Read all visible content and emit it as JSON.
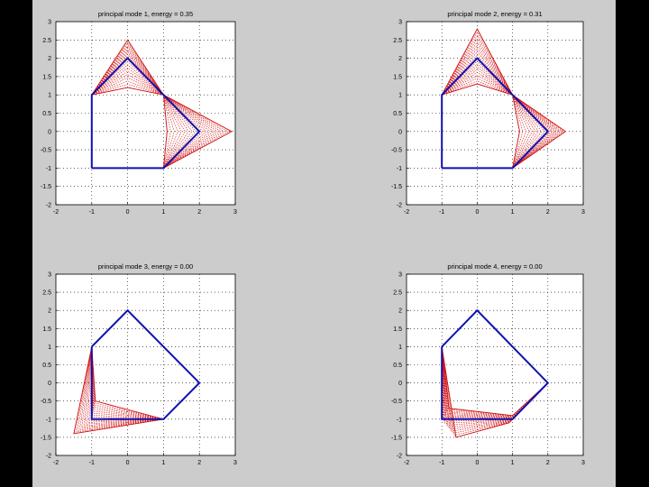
{
  "figure": {
    "background": "#cccccc",
    "outer_background": "#000000"
  },
  "colors": {
    "base_shape": "#1010b0",
    "mode_lines": "#d01010",
    "axes_bg": "#ffffff",
    "grid": "#000000"
  },
  "chart_data": [
    {
      "type": "line",
      "title": "principal mode 1, energy = 0.35",
      "xlim": [
        -2,
        3
      ],
      "ylim": [
        -2,
        3
      ],
      "xticks": [
        -2,
        -1,
        0,
        1,
        2,
        3
      ],
      "yticks": [
        -2,
        -1.5,
        -1,
        -0.5,
        0,
        0.5,
        1,
        1.5,
        2,
        2.5,
        3
      ],
      "xtick_labels": [
        "-2",
        "-1",
        "0",
        "1",
        "2",
        "3"
      ],
      "ytick_labels": [
        "-2",
        "-1.5",
        "-1",
        "-0.5",
        "0",
        "0.5",
        "1",
        "1.5",
        "2",
        "2.5",
        "3"
      ],
      "grid": true,
      "base_shape": {
        "x": [
          -1,
          -1,
          1,
          1,
          0,
          -1
        ],
        "y": [
          -1,
          1,
          1,
          -1,
          2,
          1
        ]
      },
      "series": [
        {
          "values": [
            [
              -1,
              -1
            ],
            [
              -1,
              1
            ],
            [
              0,
              2
            ],
            [
              1,
              1
            ],
            [
              2,
              0
            ],
            [
              1,
              -1
            ],
            [
              -1,
              -1
            ]
          ]
        },
        {
          "values": [
            [
              -1,
              -1
            ],
            [
              -1,
              1
            ],
            [
              0,
              2.5
            ],
            [
              1,
              1
            ],
            [
              2.9,
              0
            ],
            [
              1,
              -1
            ],
            [
              -1,
              -1
            ]
          ]
        },
        {
          "values": [
            [
              -1,
              -1
            ],
            [
              -1,
              1
            ],
            [
              0,
              1.2
            ],
            [
              1,
              1
            ],
            [
              1.1,
              0
            ],
            [
              1,
              -1
            ],
            [
              -1,
              -1
            ]
          ]
        }
      ]
    },
    {
      "type": "line",
      "title": "principal mode 2, energy = 0.31",
      "xlim": [
        -2,
        3
      ],
      "ylim": [
        -2,
        3
      ],
      "xticks": [
        -2,
        -1,
        0,
        1,
        2,
        3
      ],
      "yticks": [
        -2,
        -1.5,
        -1,
        -0.5,
        0,
        0.5,
        1,
        1.5,
        2,
        2.5,
        3
      ],
      "xtick_labels": [
        "-2",
        "-1",
        "0",
        "1",
        "2",
        "3"
      ],
      "ytick_labels": [
        "-2",
        "-1.5",
        "-1",
        "-0.5",
        "0",
        "0.5",
        "1",
        "1.5",
        "2",
        "2.5",
        "3"
      ],
      "grid": true,
      "series": [
        {
          "values": [
            [
              -1,
              -1
            ],
            [
              -1,
              1
            ],
            [
              0,
              2
            ],
            [
              1,
              1
            ],
            [
              2,
              0
            ],
            [
              1,
              -1
            ],
            [
              -1,
              -1
            ]
          ]
        },
        {
          "values": [
            [
              -1,
              -1
            ],
            [
              -1,
              1
            ],
            [
              0,
              2.8
            ],
            [
              1,
              1
            ],
            [
              2.5,
              0
            ],
            [
              1,
              -1
            ],
            [
              -1,
              -1
            ]
          ]
        },
        {
          "values": [
            [
              -1,
              -1
            ],
            [
              -1,
              1
            ],
            [
              0,
              1.3
            ],
            [
              1,
              1
            ],
            [
              1.2,
              0
            ],
            [
              1,
              -1
            ],
            [
              -1,
              -1
            ]
          ]
        }
      ]
    },
    {
      "type": "line",
      "title": "principal mode 3, energy = 0.00",
      "xlim": [
        -2,
        3
      ],
      "ylim": [
        -2,
        3
      ],
      "xticks": [
        -2,
        -1,
        0,
        1,
        2,
        3
      ],
      "yticks": [
        -2,
        -1.5,
        -1,
        -0.5,
        0,
        0.5,
        1,
        1.5,
        2,
        2.5,
        3
      ],
      "xtick_labels": [
        "-2",
        "-1",
        "0",
        "1",
        "2",
        "3"
      ],
      "ytick_labels": [
        "-2",
        "-1.5",
        "-1",
        "-0.5",
        "0",
        "0.5",
        "1",
        "1.5",
        "2",
        "2.5",
        "3"
      ],
      "grid": true,
      "series": [
        {
          "values": [
            [
              -1,
              1
            ],
            [
              0,
              2
            ],
            [
              1,
              1
            ],
            [
              2,
              0
            ],
            [
              1,
              -1
            ],
            [
              -1,
              -1
            ],
            [
              -1,
              1
            ]
          ]
        },
        {
          "values": [
            [
              -1,
              1
            ],
            [
              0,
              2
            ],
            [
              1,
              1
            ],
            [
              2,
              0
            ],
            [
              1,
              -1
            ],
            [
              -1.5,
              -1.4
            ],
            [
              -1,
              1
            ]
          ]
        },
        {
          "values": [
            [
              -1,
              1
            ],
            [
              0,
              2
            ],
            [
              1,
              1
            ],
            [
              2,
              0
            ],
            [
              1,
              -1
            ],
            [
              -0.9,
              -0.5
            ],
            [
              -1,
              1
            ]
          ]
        }
      ]
    },
    {
      "type": "line",
      "title": "principal mode 4, energy = 0.00",
      "xlim": [
        -2,
        3
      ],
      "ylim": [
        -2,
        3
      ],
      "xticks": [
        -2,
        -1,
        0,
        1,
        2,
        3
      ],
      "yticks": [
        -2,
        -1.5,
        -1,
        -0.5,
        0,
        0.5,
        1,
        1.5,
        2,
        2.5,
        3
      ],
      "xtick_labels": [
        "-2",
        "-1",
        "0",
        "1",
        "2",
        "3"
      ],
      "ytick_labels": [
        "-2",
        "-1.5",
        "-1",
        "-0.5",
        "0",
        "0.5",
        "1",
        "1.5",
        "2",
        "2.5",
        "3"
      ],
      "grid": true,
      "series": [
        {
          "values": [
            [
              -1,
              1
            ],
            [
              0,
              2
            ],
            [
              1,
              1
            ],
            [
              2,
              0
            ],
            [
              1,
              -1
            ],
            [
              -1,
              -1
            ],
            [
              -1,
              1
            ]
          ]
        },
        {
          "values": [
            [
              -1,
              1
            ],
            [
              0,
              2
            ],
            [
              1,
              1
            ],
            [
              2,
              0
            ],
            [
              0.9,
              -1.1
            ],
            [
              -0.6,
              -1.5
            ],
            [
              -1,
              1
            ]
          ]
        },
        {
          "values": [
            [
              -1,
              1
            ],
            [
              0,
              2
            ],
            [
              1,
              1
            ],
            [
              2,
              0
            ],
            [
              1,
              -0.9
            ],
            [
              -0.8,
              -0.7
            ],
            [
              -1,
              1
            ]
          ]
        }
      ]
    }
  ]
}
